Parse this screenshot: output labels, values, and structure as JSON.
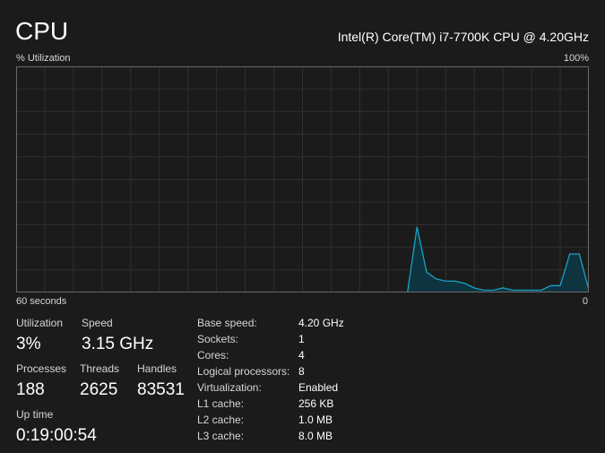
{
  "header": {
    "title": "CPU",
    "model": "Intel(R) Core(TM) i7-7700K CPU @ 4.20GHz"
  },
  "graph": {
    "y_label": "% Utilization",
    "y_max_label": "100%",
    "x_label": "60 seconds",
    "x_min_label": "0",
    "line_color": "#17a2c6",
    "fill_color": "#0e3440",
    "grid_color": "#303030",
    "border_color": "#6a6a6a"
  },
  "chart_data": {
    "type": "area",
    "x": [
      60,
      59,
      58,
      57,
      56,
      55,
      54,
      53,
      52,
      51,
      50,
      49,
      48,
      47,
      46,
      45,
      44,
      43,
      42,
      41,
      40,
      39,
      38,
      37,
      36,
      35,
      34,
      33,
      32,
      31,
      30,
      29,
      28,
      27,
      26,
      25,
      24,
      23,
      22,
      21,
      20,
      19,
      18,
      17,
      16,
      15,
      14,
      13,
      12,
      11,
      10,
      9,
      8,
      7,
      6,
      5,
      4,
      3,
      2,
      1,
      0
    ],
    "values": [
      0,
      0,
      0,
      0,
      0,
      0,
      0,
      0,
      0,
      0,
      0,
      0,
      0,
      0,
      0,
      0,
      0,
      0,
      0,
      0,
      0,
      0,
      0,
      0,
      0,
      0,
      0,
      0,
      0,
      0,
      0,
      0,
      0,
      0,
      0,
      0,
      0,
      0,
      0,
      0,
      0,
      0,
      29,
      9,
      6,
      5,
      5,
      4,
      2,
      1,
      1,
      2,
      1,
      1,
      1,
      1,
      3,
      3,
      17,
      17,
      1
    ],
    "ylim": [
      0,
      100
    ]
  },
  "stats": {
    "utilization": {
      "label": "Utilization",
      "value": "3%"
    },
    "speed": {
      "label": "Speed",
      "value": "3.15 GHz"
    },
    "processes": {
      "label": "Processes",
      "value": "188"
    },
    "threads": {
      "label": "Threads",
      "value": "2625"
    },
    "handles": {
      "label": "Handles",
      "value": "83531"
    },
    "uptime": {
      "label": "Up time",
      "value": "0:19:00:54"
    }
  },
  "specs": [
    {
      "key": "Base speed:",
      "value": "4.20 GHz"
    },
    {
      "key": "Sockets:",
      "value": "1"
    },
    {
      "key": "Cores:",
      "value": "4"
    },
    {
      "key": "Logical processors:",
      "value": "8"
    },
    {
      "key": "Virtualization:",
      "value": "Enabled"
    },
    {
      "key": "L1 cache:",
      "value": "256 KB"
    },
    {
      "key": "L2 cache:",
      "value": "1.0 MB"
    },
    {
      "key": "L3 cache:",
      "value": "8.0 MB"
    }
  ]
}
